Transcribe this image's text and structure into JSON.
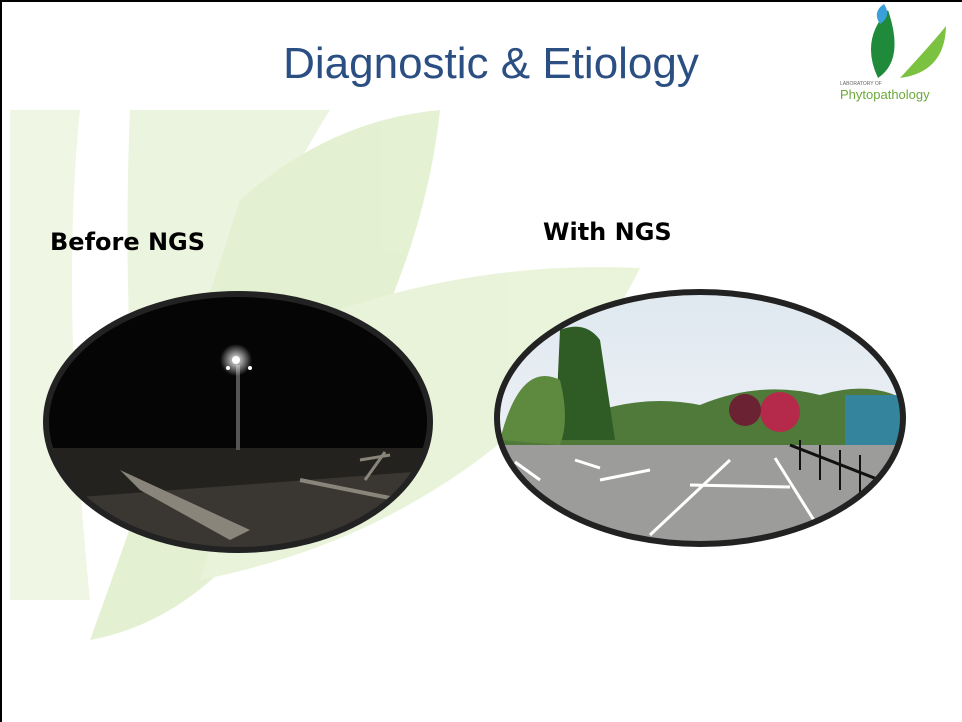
{
  "header": {
    "title": "Diagnostic & Etiology",
    "logo_small": "LABORATORY OF",
    "logo_name": "Phytopathology"
  },
  "panels": [
    {
      "label": "Before NGS"
    },
    {
      "label": "With NGS"
    }
  ]
}
